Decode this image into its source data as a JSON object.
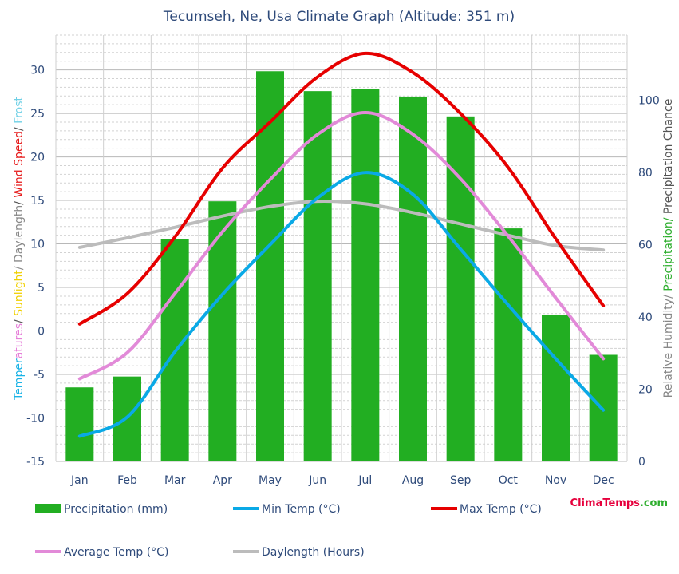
{
  "chart_data": {
    "type": "bar",
    "title": "Tecumseh, Ne, Usa Climate Graph (Altitude: 351 m)",
    "categories": [
      "Jan",
      "Feb",
      "Mar",
      "Apr",
      "May",
      "Jun",
      "Jul",
      "Aug",
      "Sep",
      "Oct",
      "Nov",
      "Dec"
    ],
    "left_axis": {
      "label_parts": [
        {
          "text": "Temperatures",
          "colors": [
            "#1ab3e6",
            "#e67fd9"
          ]
        },
        {
          "text": "/ ",
          "color": "#555555"
        },
        {
          "text": "Sunlight",
          "color": "#f0d000"
        },
        {
          "text": "/ Daylength",
          "color": "#888888"
        },
        {
          "text": "/ ",
          "color": "#555555"
        },
        {
          "text": "Wind Speed",
          "color": "#e61a1a"
        },
        {
          "text": "/ ",
          "color": "#555555"
        },
        {
          "text": "Frost",
          "color": "#6fd0e6"
        }
      ],
      "ylim": [
        -15,
        34
      ],
      "ticks": [
        "-15",
        "-10",
        "-5",
        "0",
        "5",
        "10",
        "15",
        "20",
        "25",
        "30"
      ]
    },
    "right_axis": {
      "label_parts": [
        {
          "text": "Relative Humidity/ ",
          "color": "#888888"
        },
        {
          "text": "Precipitation/ ",
          "color": "#2eae2e"
        },
        {
          "text": "Precipitation Chance",
          "color": "#555555"
        }
      ],
      "ylim": [
        0,
        118
      ],
      "ticks": [
        "0",
        "20",
        "40",
        "60",
        "80",
        "100"
      ]
    },
    "series": [
      {
        "name": "Precipitation (mm)",
        "kind": "bar",
        "axis": "right",
        "color": "#22ae22",
        "values": [
          20.5,
          23.5,
          61.5,
          72,
          108,
          102.5,
          103,
          101,
          95.5,
          64.5,
          40.5,
          29.5
        ]
      },
      {
        "name": "Min Temp (°C)",
        "kind": "line",
        "axis": "left",
        "color": "#0aa9e6",
        "values": [
          -12.1,
          -9.9,
          -2.4,
          4.2,
          9.9,
          15.3,
          18.2,
          15.7,
          9.4,
          3.0,
          -3.2,
          -9.1
        ]
      },
      {
        "name": "Max Temp (°C)",
        "kind": "line",
        "axis": "left",
        "color": "#e60000",
        "values": [
          0.8,
          4.3,
          10.8,
          18.7,
          24.0,
          29.2,
          31.9,
          29.7,
          25.0,
          18.8,
          10.6,
          2.9
        ]
      },
      {
        "name": "Average Temp (°C)",
        "kind": "line",
        "axis": "left",
        "color": "#e28ad8",
        "values": [
          -5.5,
          -2.5,
          4.3,
          11.4,
          17.4,
          22.6,
          25.1,
          22.6,
          17.5,
          10.9,
          3.8,
          -3.2
        ]
      },
      {
        "name": "Daylength (Hours)",
        "kind": "line",
        "axis": "left",
        "color": "#bcbcbc",
        "values": [
          9.6,
          10.7,
          11.9,
          13.2,
          14.3,
          14.9,
          14.6,
          13.6,
          12.3,
          11.0,
          9.8,
          9.3
        ]
      }
    ],
    "legend": {
      "position": "bottom",
      "items": [
        {
          "label": "Precipitation (mm)",
          "swatch": "bar",
          "color": "#22ae22"
        },
        {
          "label": "Min Temp (°C)",
          "swatch": "line",
          "color": "#0aa9e6"
        },
        {
          "label": "Max Temp (°C)",
          "swatch": "line",
          "color": "#e60000"
        },
        {
          "label": "Average Temp (°C)",
          "swatch": "line",
          "color": "#e28ad8"
        },
        {
          "label": "Daylength (Hours)",
          "swatch": "line",
          "color": "#bcbcbc"
        }
      ]
    },
    "grid": true
  },
  "branding": {
    "parts": [
      {
        "text": "Clima",
        "color": "#e6003c"
      },
      {
        "text": "Temps",
        "color": "#e6003c"
      },
      {
        "text": ".com",
        "color": "#2eae2e"
      }
    ]
  }
}
